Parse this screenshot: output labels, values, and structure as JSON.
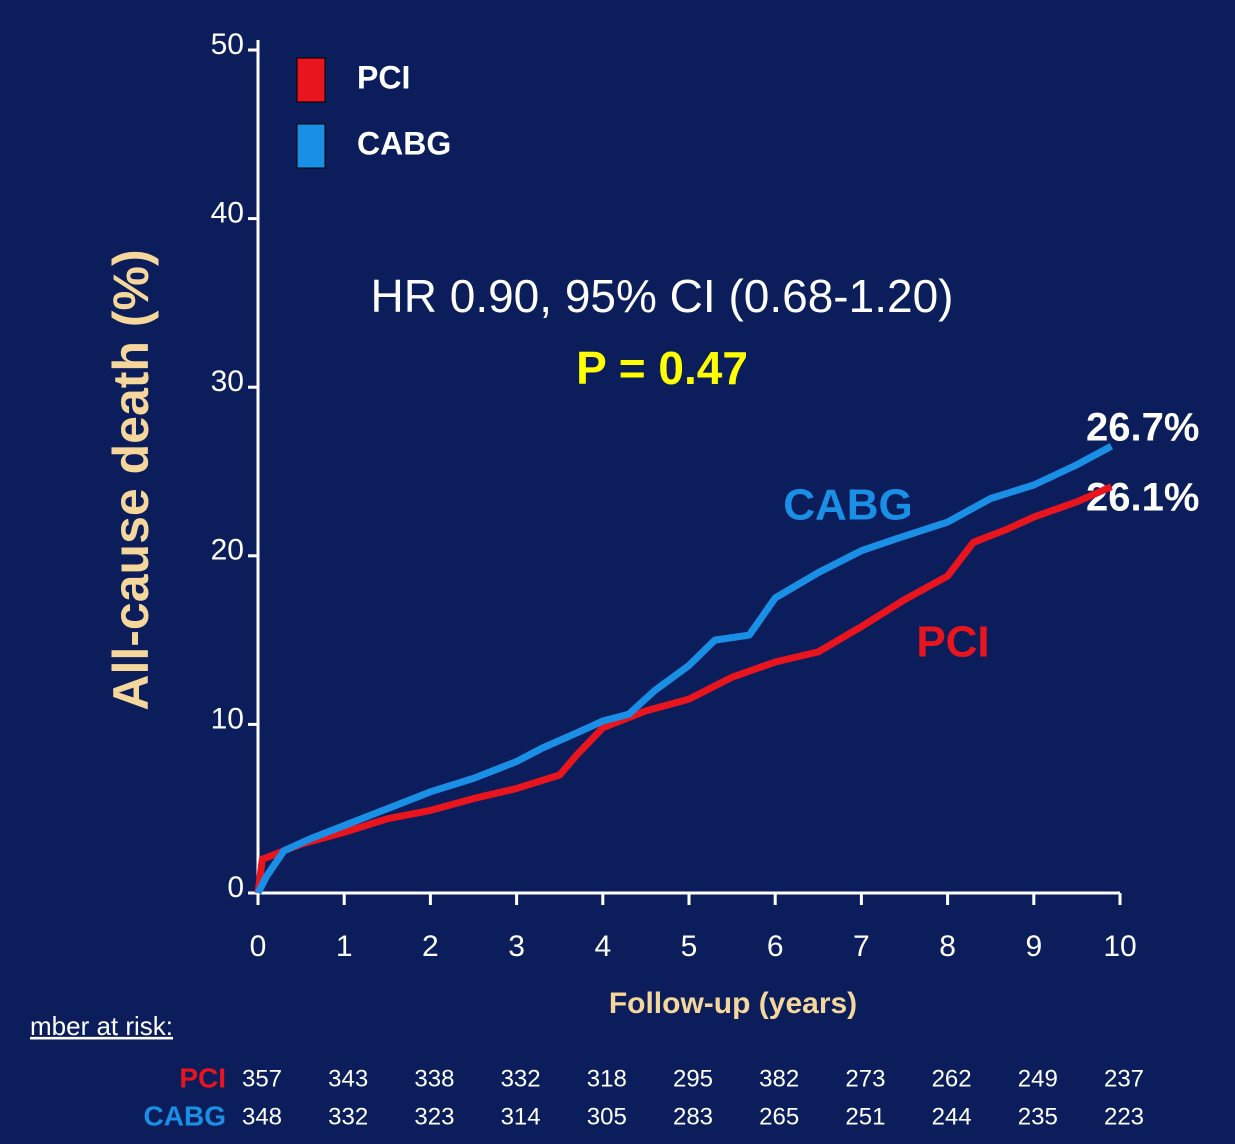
{
  "chart_data": {
    "type": "line",
    "ylabel": "All-cause death  (%)",
    "xlabel": "Follow-up (years)",
    "xlim": [
      0,
      10
    ],
    "xticks": [
      0,
      1,
      2,
      3,
      4,
      5,
      6,
      7,
      8,
      9,
      10
    ],
    "ylim": [
      0,
      50
    ],
    "yticks": [
      0,
      10,
      20,
      30,
      40,
      50
    ],
    "series": [
      {
        "name": "PCI",
        "color": "#e8141e",
        "x": [
          0,
          0.05,
          0.3,
          0.5,
          1,
          1.5,
          2,
          2.5,
          3,
          3.5,
          3.7,
          4,
          4.5,
          5,
          5.5,
          6,
          6.5,
          7,
          7.5,
          8,
          8.3,
          8.7,
          9,
          9.5,
          9.9
        ],
        "values": [
          0,
          2,
          2.5,
          2.9,
          3.6,
          4.4,
          4.9,
          5.6,
          6.2,
          7.0,
          8.2,
          9.8,
          10.8,
          11.5,
          12.8,
          13.7,
          14.3,
          15.8,
          17.4,
          18.8,
          20.8,
          21.6,
          22.3,
          23.2,
          24.1
        ]
      },
      {
        "name": "CABG",
        "color": "#1a8fe6",
        "x": [
          0,
          0.1,
          0.3,
          0.6,
          1,
          1.5,
          2,
          2.5,
          3,
          3.3,
          3.7,
          4,
          4.3,
          4.6,
          5,
          5.3,
          5.7,
          6,
          6.5,
          7,
          7.4,
          8,
          8.5,
          9,
          9.5,
          9.9
        ],
        "values": [
          0,
          1,
          2.5,
          3.2,
          4,
          5,
          6,
          6.8,
          7.8,
          8.6,
          9.5,
          10.2,
          10.6,
          12,
          13.5,
          15,
          15.3,
          17.5,
          19,
          20.3,
          21,
          22,
          23.4,
          24.2,
          25.4,
          26.5
        ]
      }
    ],
    "annotations": [
      "HR 0.90, 95% CI (0.68-1.20)",
      "P = 0.47",
      "CABG",
      "PCI",
      "26.7%",
      "26.1%"
    ],
    "risk_table": {
      "title": "mber at risk:",
      "rows": [
        {
          "name": "PCI",
          "values": [
            "357",
            "343",
            "338",
            "332",
            "318",
            "295",
            "382",
            "273",
            "262",
            "249",
            "237"
          ]
        },
        {
          "name": "CABG",
          "values": [
            "348",
            "332",
            "323",
            "314",
            "305",
            "283",
            "265",
            "251",
            "244",
            "235",
            "223"
          ]
        }
      ]
    }
  }
}
